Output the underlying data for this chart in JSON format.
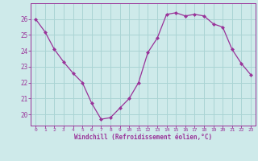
{
  "x": [
    0,
    1,
    2,
    3,
    4,
    5,
    6,
    7,
    8,
    9,
    10,
    11,
    12,
    13,
    14,
    15,
    16,
    17,
    18,
    19,
    20,
    21,
    22,
    23
  ],
  "y": [
    26.0,
    25.2,
    24.1,
    23.3,
    22.6,
    22.0,
    20.7,
    19.7,
    19.8,
    20.4,
    21.0,
    22.0,
    23.9,
    24.8,
    26.3,
    26.4,
    26.2,
    26.3,
    26.2,
    25.7,
    25.5,
    24.1,
    23.2,
    22.5
  ],
  "line_color": "#993399",
  "marker": "D",
  "marker_size": 2.0,
  "bg_color": "#ceeaea",
  "grid_color": "#aad4d4",
  "xlabel": "Windchill (Refroidissement éolien,°C)",
  "xlabel_color": "#993399",
  "tick_color": "#993399",
  "ylabel_ticks": [
    20,
    21,
    22,
    23,
    24,
    25,
    26
  ],
  "xlim": [
    -0.5,
    23.5
  ],
  "ylim": [
    19.3,
    27.0
  ]
}
